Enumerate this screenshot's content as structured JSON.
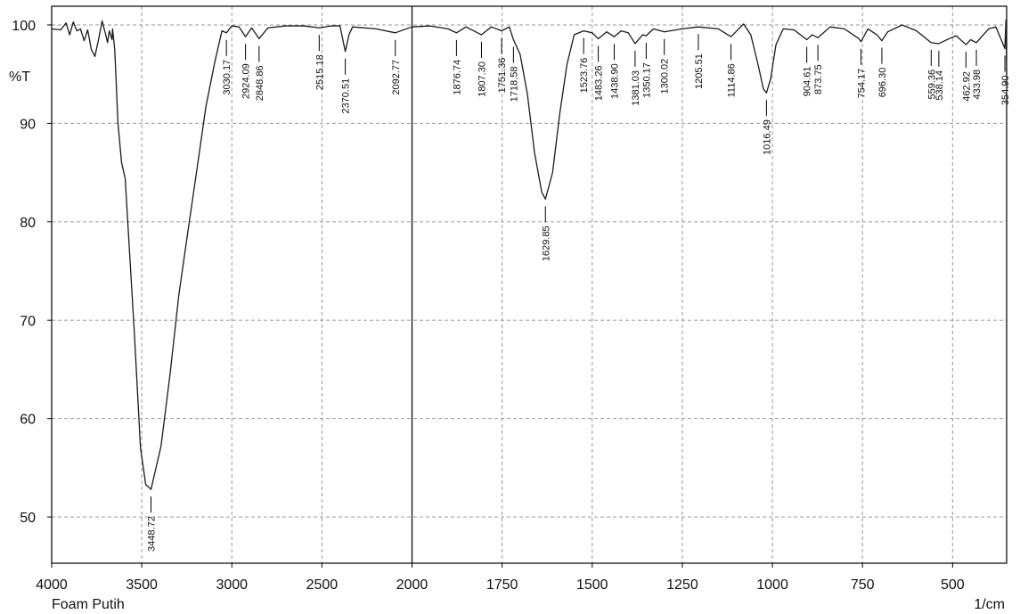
{
  "chart_data": {
    "type": "line",
    "ylabel": "%T",
    "xlabel": "1/cm",
    "sample": "Foam Putih",
    "xlim": [
      4000,
      350
    ],
    "x_break": 2000,
    "x_break_zoom": 2,
    "ylim": [
      45.3,
      101.9
    ],
    "xticks": [
      4000,
      3500,
      3000,
      2500,
      2000,
      1750,
      1500,
      1250,
      1000,
      750,
      500
    ],
    "yticks": [
      50,
      60,
      70,
      80,
      90,
      100
    ],
    "grid": true,
    "x": [
      4000,
      3950,
      3920,
      3900,
      3880,
      3860,
      3840,
      3820,
      3800,
      3780,
      3760,
      3740,
      3720,
      3700,
      3690,
      3680,
      3665,
      3662,
      3650,
      3632,
      3612,
      3592,
      3542,
      3507,
      3478,
      3448.72,
      3393,
      3343,
      3294,
      3244,
      3194,
      3144,
      3095,
      3055,
      3030.17,
      3000,
      2960,
      2924.09,
      2890,
      2848.86,
      2800,
      2700,
      2600,
      2515.18,
      2450,
      2400,
      2370.51,
      2350,
      2330,
      2200,
      2092.77,
      2000,
      1950,
      1900,
      1876.74,
      1850,
      1807.3,
      1780,
      1751.36,
      1730,
      1718.58,
      1700,
      1680,
      1660,
      1640,
      1629.85,
      1610,
      1590,
      1570,
      1550,
      1523.76,
      1500,
      1483.26,
      1460,
      1438.9,
      1420,
      1400,
      1381.03,
      1360,
      1350.17,
      1330,
      1300.02,
      1250,
      1205.51,
      1150,
      1114.86,
      1080,
      1060,
      1040,
      1025,
      1016.49,
      1005,
      990,
      970,
      940,
      904.61,
      890,
      873.75,
      840,
      800,
      760,
      754.17,
      735,
      710,
      696.3,
      680,
      640,
      600,
      559.36,
      538.14,
      510,
      490,
      462.92,
      450,
      433.98,
      400,
      380,
      365,
      354.9,
      352,
      350
    ],
    "series": [
      {
        "color": "#1a1a1a",
        "values": [
          99.6,
          99.5,
          100.2,
          99,
          100.3,
          99.4,
          99.6,
          98.4,
          99.5,
          97.5,
          96.8,
          98.5,
          100.4,
          99,
          98.2,
          99.4,
          98.5,
          99.6,
          97.5,
          90,
          86,
          84.4,
          69,
          57,
          53.3,
          52.8,
          57.2,
          64.5,
          72.6,
          79,
          85.3,
          91.7,
          96.2,
          99.4,
          99.2,
          99.9,
          99.8,
          98.8,
          99.7,
          98.6,
          99.7,
          99.9,
          99.9,
          99.7,
          99.9,
          99.9,
          97.3,
          99,
          99.8,
          99.6,
          99.2,
          99.8,
          99.9,
          99.6,
          99.2,
          99.8,
          99,
          99.8,
          99.4,
          99.8,
          98.5,
          97,
          93,
          87,
          83,
          82.3,
          85,
          91,
          96,
          99,
          99.4,
          99.2,
          98.6,
          99.3,
          98.8,
          99.4,
          99.2,
          98.1,
          99,
          98.9,
          99.6,
          99.3,
          99.6,
          99.8,
          99.6,
          98.8,
          100.1,
          99,
          96,
          93.5,
          93.1,
          94.5,
          98,
          99.6,
          99.5,
          98.5,
          99,
          98.7,
          99.8,
          99.6,
          98.6,
          98.3,
          99.6,
          99,
          98.4,
          99.3,
          100,
          99.4,
          98.2,
          98.1,
          98.6,
          98.9,
          98,
          98.5,
          98.2,
          99.6,
          99.8,
          98.5,
          97.6,
          100.5,
          95
        ]
      }
    ],
    "peaks": {
      "x": [
        3448.72,
        3030.17,
        2924.09,
        2848.86,
        2515.18,
        2370.51,
        2092.77,
        1876.74,
        {
          "value": 1807.3,
          "label": "1807.30"
        },
        1751.36,
        1718.58,
        1629.85,
        1523.76,
        1483.26,
        {
          "value": 1438.9,
          "label": "1438.90"
        },
        1381.03,
        1350.17,
        1300.02,
        1205.51,
        1114.86,
        1016.49,
        904.61,
        873.75,
        754.17,
        {
          "value": 696.3,
          "label": "696.30"
        },
        559.36,
        538.14,
        462.92,
        433.98,
        {
          "value": 354.9,
          "label": "354.90"
        }
      ],
      "y": [
        52.8,
        99.2,
        98.8,
        98.6,
        99.7,
        97.3,
        99.2,
        99.2,
        99,
        99.4,
        98.5,
        82.3,
        99.4,
        98.6,
        98.8,
        98.1,
        98.9,
        99.3,
        99.8,
        98.8,
        93.1,
        98.5,
        98.7,
        98.3,
        98.4,
        98.2,
        98.1,
        98,
        98.2,
        97.6
      ]
    }
  }
}
